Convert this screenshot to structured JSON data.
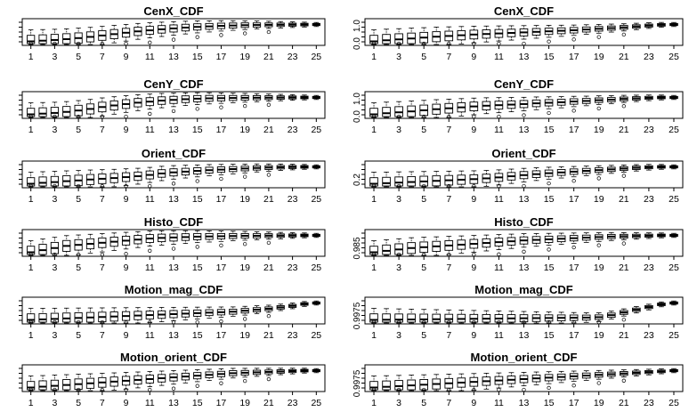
{
  "chart_data": [
    {
      "type": "box",
      "title": "CenX_CDF",
      "x_tick_labels": [
        "1",
        "3",
        "5",
        "7",
        "9",
        "11",
        "13",
        "15",
        "17",
        "19",
        "21",
        "23",
        "25"
      ],
      "y_tick_labels": [],
      "medians": [
        0.02,
        0.06,
        0.1,
        0.15,
        0.21,
        0.28,
        0.36,
        0.44,
        0.52,
        0.6,
        0.66,
        0.72,
        0.77,
        0.82,
        0.86,
        0.89,
        0.92,
        0.94,
        0.96,
        0.97,
        0.98,
        0.985,
        0.99,
        0.995,
        1.0
      ]
    },
    {
      "type": "box",
      "title": "CenX_CDF",
      "x_tick_labels": [
        "1",
        "3",
        "5",
        "7",
        "9",
        "11",
        "13",
        "15",
        "17",
        "19",
        "21",
        "23",
        "25"
      ],
      "y_tick_labels": [
        "0.0",
        "1.0"
      ],
      "medians": [
        0.06,
        0.12,
        0.17,
        0.22,
        0.27,
        0.32,
        0.36,
        0.4,
        0.44,
        0.47,
        0.5,
        0.53,
        0.56,
        0.59,
        0.62,
        0.65,
        0.68,
        0.72,
        0.76,
        0.8,
        0.84,
        0.89,
        0.94,
        0.98,
        1.0
      ]
    },
    {
      "type": "box",
      "title": "CenY_CDF",
      "x_tick_labels": [
        "1",
        "3",
        "5",
        "7",
        "9",
        "11",
        "13",
        "15",
        "17",
        "19",
        "21",
        "23",
        "25"
      ],
      "y_tick_labels": [],
      "medians": [
        0.03,
        0.07,
        0.11,
        0.17,
        0.25,
        0.34,
        0.45,
        0.54,
        0.62,
        0.7,
        0.76,
        0.82,
        0.86,
        0.9,
        0.93,
        0.95,
        0.96,
        0.97,
        0.98,
        0.985,
        0.99,
        0.995,
        1.0,
        1.0,
        1.0
      ]
    },
    {
      "type": "box",
      "title": "CenY_CDF",
      "x_tick_labels": [
        "1",
        "3",
        "5",
        "7",
        "9",
        "11",
        "13",
        "15",
        "17",
        "19",
        "21",
        "23",
        "25"
      ],
      "y_tick_labels": [
        "0.0",
        "1.0"
      ],
      "medians": [
        0.08,
        0.14,
        0.19,
        0.24,
        0.3,
        0.36,
        0.41,
        0.46,
        0.51,
        0.55,
        0.58,
        0.61,
        0.64,
        0.68,
        0.71,
        0.74,
        0.78,
        0.81,
        0.85,
        0.88,
        0.92,
        0.95,
        0.98,
        1.0,
        1.0
      ]
    },
    {
      "type": "box",
      "title": "Orient_CDF",
      "x_tick_labels": [
        "1",
        "3",
        "5",
        "7",
        "9",
        "11",
        "13",
        "15",
        "17",
        "19",
        "21",
        "23",
        "25"
      ],
      "y_tick_labels": [],
      "medians": [
        0.08,
        0.13,
        0.17,
        0.22,
        0.26,
        0.31,
        0.35,
        0.39,
        0.44,
        0.49,
        0.56,
        0.64,
        0.7,
        0.74,
        0.78,
        0.82,
        0.85,
        0.88,
        0.91,
        0.94,
        0.96,
        0.98,
        0.99,
        1.0,
        1.0
      ]
    },
    {
      "type": "box",
      "title": "Orient_CDF",
      "x_tick_labels": [
        "1",
        "3",
        "5",
        "7",
        "9",
        "11",
        "13",
        "15",
        "17",
        "19",
        "21",
        "23",
        "25"
      ],
      "y_tick_labels": [
        "0.2"
      ],
      "medians": [
        0.12,
        0.15,
        0.18,
        0.21,
        0.24,
        0.27,
        0.3,
        0.33,
        0.36,
        0.4,
        0.45,
        0.51,
        0.57,
        0.62,
        0.67,
        0.71,
        0.75,
        0.79,
        0.83,
        0.87,
        0.91,
        0.95,
        0.98,
        1.0,
        1.0
      ]
    },
    {
      "type": "box",
      "title": "Histo_CDF",
      "x_tick_labels": [
        "1",
        "3",
        "5",
        "7",
        "9",
        "11",
        "13",
        "15",
        "17",
        "19",
        "21",
        "23",
        "25"
      ],
      "y_tick_labels": [],
      "medians": [
        0.992,
        0.993,
        0.994,
        0.995,
        0.9955,
        0.996,
        0.9965,
        0.997,
        0.9975,
        0.998,
        0.9985,
        0.9988,
        0.999,
        0.9992,
        0.9994,
        0.9995,
        0.9996,
        0.9997,
        0.9998,
        0.9998,
        0.9999,
        0.9999,
        0.99995,
        1.0,
        1.0
      ]
    },
    {
      "type": "box",
      "title": "Histo_CDF",
      "x_tick_labels": [
        "1",
        "3",
        "5",
        "7",
        "9",
        "11",
        "13",
        "15",
        "17",
        "19",
        "21",
        "23",
        "25"
      ],
      "y_tick_labels": [
        "0.985"
      ],
      "medians": [
        0.994,
        0.9945,
        0.995,
        0.9955,
        0.9958,
        0.9961,
        0.9964,
        0.9967,
        0.997,
        0.9973,
        0.9976,
        0.9979,
        0.9982,
        0.9984,
        0.9986,
        0.9988,
        0.999,
        0.9992,
        0.9994,
        0.9996,
        0.9997,
        0.9998,
        0.9999,
        1.0,
        1.0
      ]
    },
    {
      "type": "box",
      "title": "Motion_mag_CDF",
      "x_tick_labels": [
        "1",
        "3",
        "5",
        "7",
        "9",
        "11",
        "13",
        "15",
        "17",
        "19",
        "21",
        "23",
        "25"
      ],
      "y_tick_labels": [],
      "medians": [
        0.99965,
        0.99966,
        0.99967,
        0.99968,
        0.99969,
        0.9997,
        0.99971,
        0.99972,
        0.99973,
        0.99974,
        0.99975,
        0.99976,
        0.99977,
        0.99978,
        0.99979,
        0.9998,
        0.99981,
        0.99982,
        0.99984,
        0.99986,
        0.99988,
        0.99991,
        0.99994,
        0.99998,
        1.0
      ]
    },
    {
      "type": "box",
      "title": "Motion_mag_CDF",
      "x_tick_labels": [
        "1",
        "3",
        "5",
        "7",
        "9",
        "11",
        "13",
        "15",
        "17",
        "19",
        "21",
        "23",
        "25"
      ],
      "y_tick_labels": [
        "0.9975"
      ],
      "medians": [
        0.99875,
        0.99876,
        0.99877,
        0.99878,
        0.99879,
        0.9988,
        0.99881,
        0.99882,
        0.99883,
        0.99884,
        0.99885,
        0.99886,
        0.99887,
        0.99888,
        0.99889,
        0.9989,
        0.99891,
        0.99892,
        0.99895,
        0.9991,
        0.9993,
        0.9995,
        0.9997,
        0.9999,
        1.0
      ]
    },
    {
      "type": "box",
      "title": "Motion_orient_CDF",
      "x_tick_labels": [
        "1",
        "3",
        "5",
        "7",
        "9",
        "11",
        "13",
        "15",
        "17",
        "19",
        "21",
        "23",
        "25"
      ],
      "y_tick_labels": [],
      "medians": [
        0.9996,
        0.99962,
        0.99964,
        0.99966,
        0.99968,
        0.9997,
        0.99972,
        0.99974,
        0.99976,
        0.99978,
        0.9998,
        0.99982,
        0.99984,
        0.99986,
        0.99988,
        0.9999,
        0.99992,
        0.99994,
        0.99995,
        0.99996,
        0.99997,
        0.99998,
        0.99999,
        1.0,
        1.0
      ]
    },
    {
      "type": "box",
      "title": "Motion_orient_CDF",
      "x_tick_labels": [
        "1",
        "3",
        "5",
        "7",
        "9",
        "11",
        "13",
        "15",
        "17",
        "19",
        "21",
        "23",
        "25"
      ],
      "y_tick_labels": [
        "0.9975"
      ],
      "medians": [
        0.9988,
        0.99885,
        0.9989,
        0.99895,
        0.999,
        0.99905,
        0.9991,
        0.99915,
        0.9992,
        0.99925,
        0.9993,
        0.99935,
        0.9994,
        0.99945,
        0.9995,
        0.99955,
        0.9996,
        0.99965,
        0.9997,
        0.99975,
        0.9998,
        0.99985,
        0.9999,
        0.99995,
        1.0
      ]
    }
  ]
}
